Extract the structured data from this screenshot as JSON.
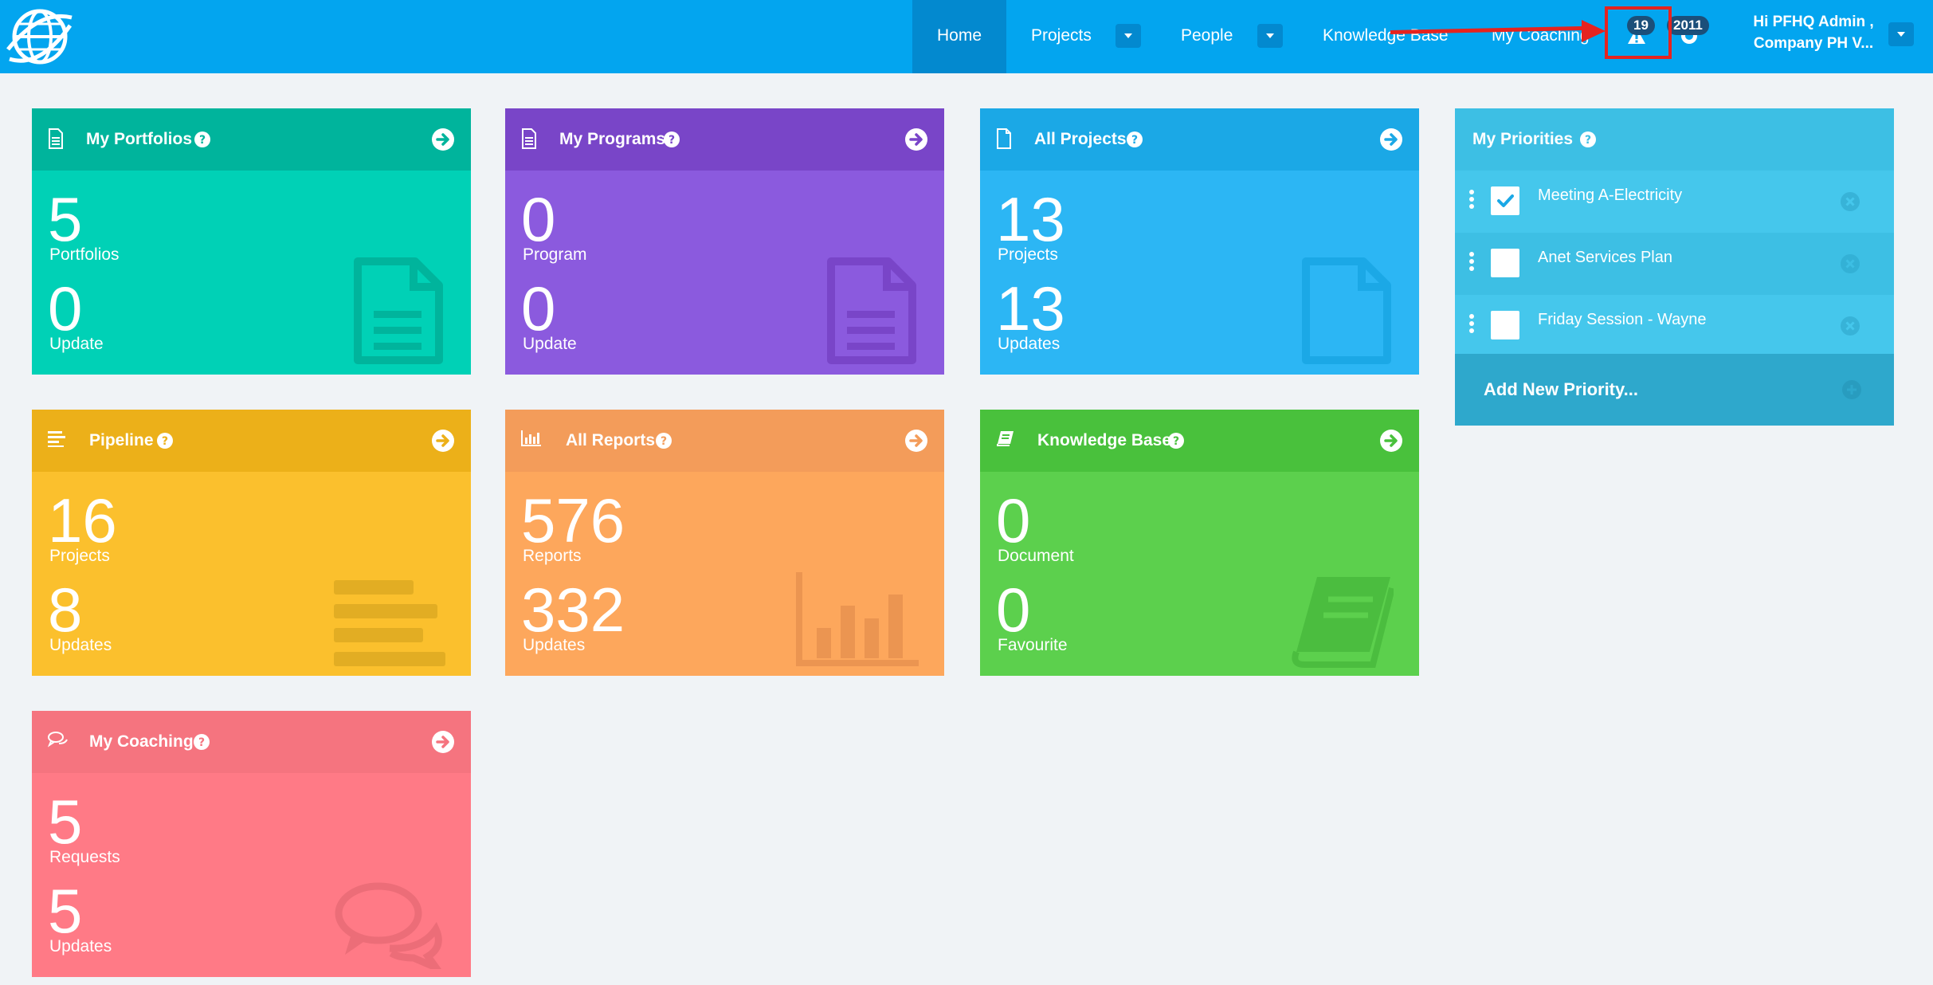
{
  "nav": {
    "links": [
      {
        "label": "Home"
      },
      {
        "label": "Projects"
      },
      {
        "label": "People"
      },
      {
        "label": "Knowledge Base"
      },
      {
        "label": "My Coaching"
      }
    ],
    "alerts_badge": "19",
    "notifications_badge": "2011",
    "user_line1": "Hi PFHQ Admin ,",
    "user_line2": "Company PH V...",
    "active_color": "#0389cf",
    "bar_color": "#03a5ef"
  },
  "cards": {
    "portfolios": {
      "title": "My Portfolios",
      "num1": "5",
      "label1": "Portfolios",
      "num2": "0",
      "label2": "Update",
      "icon": "document-icon"
    },
    "programs": {
      "title": "My Programs",
      "num1": "0",
      "label1": "Program",
      "num2": "0",
      "label2": "Update",
      "icon": "document-icon"
    },
    "projects": {
      "title": "All Projects",
      "num1": "13",
      "label1": "Projects",
      "num2": "13",
      "label2": "Updates",
      "icon": "file-icon"
    },
    "pipeline": {
      "title": "Pipeline",
      "num1": "16",
      "label1": "Projects",
      "num2": "8",
      "label2": "Updates",
      "icon": "bars-icon"
    },
    "reports": {
      "title": "All Reports",
      "num1": "576",
      "label1": "Reports",
      "num2": "332",
      "label2": "Updates",
      "icon": "bar-chart-icon"
    },
    "knowledge": {
      "title": "Knowledge Base",
      "num1": "0",
      "label1": "Document",
      "num2": "0",
      "label2": "Favourite",
      "icon": "book-icon"
    },
    "coaching": {
      "title": "My Coaching",
      "num1": "5",
      "label1": "Requests",
      "num2": "5",
      "label2": "Updates",
      "icon": "chat-icon"
    }
  },
  "colors": {
    "portfolios": [
      "#00b49c",
      "#00d1b6"
    ],
    "programs": [
      "#7945c8",
      "#8b5ade"
    ],
    "projects": [
      "#1ba8e6",
      "#2cb6f4"
    ],
    "pipeline": [
      "#ecb019",
      "#fbc02d"
    ],
    "reports": [
      "#f39c5a",
      "#fda75c"
    ],
    "knowledge": [
      "#49c13c",
      "#5cd04d"
    ],
    "coaching": [
      "#f5747f",
      "#ff7a86"
    ]
  },
  "priorities": {
    "title": "My Priorities",
    "items": [
      {
        "label": "Meeting A-Electricity",
        "checked": true
      },
      {
        "label": "Anet Services Plan",
        "checked": false
      },
      {
        "label": "Friday Session - Wayne",
        "checked": false
      }
    ],
    "add_label": "Add New Priority..."
  }
}
